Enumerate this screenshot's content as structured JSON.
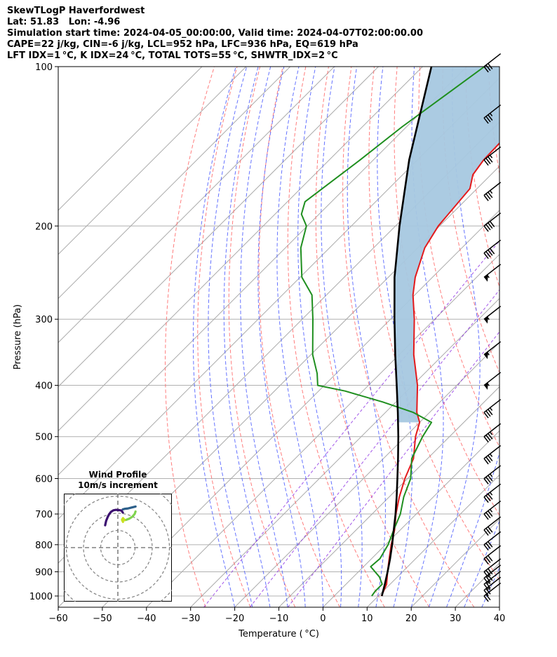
{
  "header": {
    "line1": "SkewTLogP Haverfordwest",
    "line2": "Lat: 51.83   Lon: -4.96",
    "line3": "Simulation start time: 2024-04-05_00:00:00, Valid time: 2024-04-07T02:00:00.00",
    "line4": "CAPE=22 j/kg, CIN=-6 j/kg, LCL=952 hPa, LFC=936 hPa, EQ=619 hPa",
    "line5": "LFT IDX=1 °C, K IDX=24 °C, TOTAL TOTS=55 °C, SHWTR_IDX=2 °C"
  },
  "inset": {
    "title": "Wind Profile",
    "subtitle": "10m/s increment"
  },
  "colors": {
    "temperature": "#e31a1c",
    "dewpoint": "#1f8f1f",
    "parcel": "#000000",
    "cape_fill": "#a6c8e0",
    "dry_adiabat": "#ff6666",
    "moist_adiabat": "#4a5bff",
    "mixing_ratio": "#8a2be2",
    "isotherm": "#aaaaaa"
  },
  "chart_data": [
    {
      "type": "line",
      "chart": "skew-T log-P",
      "xlabel": "Temperature ( °C)",
      "ylabel": "Pressure (hPa)",
      "xlim": [
        -60,
        40
      ],
      "ylim": [
        1050,
        100
      ],
      "y_scale": "log",
      "skew": true,
      "x_ticks": [
        -60,
        -50,
        -40,
        -30,
        -20,
        -10,
        0,
        10,
        20,
        30,
        40
      ],
      "x_tick_labels": [
        "−60",
        "−50",
        "−40",
        "−30",
        "−20",
        "−10",
        "0",
        "10",
        "20",
        "30",
        "40"
      ],
      "y_ticks": [
        1000,
        900,
        800,
        700,
        600,
        500,
        400,
        300,
        200,
        100
      ],
      "y_tick_labels": [
        "1000",
        "900",
        "800",
        "700",
        "600",
        "500",
        "400",
        "300",
        "200",
        "100"
      ],
      "grid": true,
      "series": [
        {
          "key": "temperature",
          "pressure": [
            1000,
            950,
            900,
            850,
            800,
            750,
            700,
            650,
            600,
            550,
            500,
            470,
            450,
            400,
            350,
            300,
            270,
            250,
            220,
            200,
            170,
            160,
            150,
            130,
            120,
            110,
            100
          ],
          "temp": [
            10.7,
            9.2,
            6.6,
            4.0,
            1.3,
            -1.3,
            -4.6,
            -7.7,
            -10.6,
            -13.2,
            -17.7,
            -20.0,
            -22.9,
            -28.9,
            -36.7,
            -44.6,
            -50.4,
            -53.9,
            -58.4,
            -60.3,
            -61.6,
            -64.1,
            -65.0,
            -65.4,
            -68.0,
            -66.0,
            -67.0
          ]
        },
        {
          "key": "dewpoint",
          "pressure": [
            1000,
            980,
            950,
            920,
            880,
            850,
            800,
            750,
            700,
            650,
            600,
            550,
            500,
            470,
            450,
            430,
            410,
            400,
            380,
            350,
            300,
            270,
            250,
            220,
            200,
            190,
            180,
            150,
            130,
            100
          ],
          "temp": [
            8.5,
            8.2,
            8.2,
            5.9,
            1.6,
            1.9,
            0.6,
            -1.5,
            -3.6,
            -6.7,
            -9.3,
            -13.6,
            -16.1,
            -17.3,
            -23.7,
            -33.0,
            -44.0,
            -51.5,
            -54.3,
            -59.6,
            -67.6,
            -73.3,
            -79.6,
            -86.5,
            -90.2,
            -94.0,
            -96.0,
            -93.0,
            -91.0,
            -86.0
          ]
        },
        {
          "key": "parcel",
          "pressure": [
            1000,
            950,
            900,
            850,
            800,
            750,
            700,
            650,
            600,
            550,
            500,
            450,
            400,
            350,
            300,
            250,
            200,
            150,
            100
          ],
          "temp": [
            10.8,
            8.8,
            6.6,
            4.2,
            1.5,
            -1.5,
            -4.7,
            -8.3,
            -12.3,
            -16.7,
            -21.6,
            -27.2,
            -33.6,
            -40.9,
            -49.1,
            -58.6,
            -69.1,
            -81.9,
            -98.0
          ]
        }
      ],
      "cape_region": {
        "bottom_hPa": 470,
        "top_hPa": 100
      },
      "wind_barbs": {
        "pressure": [
          1000,
          975,
          950,
          925,
          900,
          850,
          800,
          750,
          700,
          650,
          600,
          550,
          500,
          450,
          400,
          350,
          300,
          250,
          225,
          200,
          175,
          150,
          125,
          100
        ],
        "speed_kt": [
          20,
          25,
          25,
          30,
          30,
          30,
          30,
          30,
          35,
          35,
          35,
          35,
          35,
          35,
          55,
          55,
          55,
          55,
          40,
          40,
          35,
          35,
          35,
          30
        ]
      }
    },
    {
      "type": "hodograph",
      "title": "Wind Profile",
      "subtitle": "10m/s increment",
      "ring_step_ms": 10,
      "segments": [
        {
          "color": "#3b0f70",
          "u": [
            -7.4,
            -6.8,
            -5.9,
            -5.1,
            -4.0,
            -2.6,
            -1.0,
            0.8,
            2.1,
            2.9
          ],
          "v": [
            13.0,
            15.6,
            17.8,
            19.4,
            20.8,
            21.7,
            22.0,
            21.8,
            21.6,
            20.4
          ]
        },
        {
          "color": "#2c5f8a",
          "u": [
            2.9,
            4.2,
            6.0,
            8.2,
            10.3
          ],
          "v": [
            22.3,
            22.6,
            22.8,
            23.4,
            23.9
          ]
        },
        {
          "color": "#7fd34e",
          "u": [
            10.3,
            9.8,
            8.4,
            6.6,
            5.0,
            3.9
          ],
          "v": [
            21.0,
            19.6,
            18.0,
            16.8,
            16.2,
            16.0
          ]
        },
        {
          "color": "#c8e020",
          "u": [
            3.9,
            3.0,
            2.4,
            3.0
          ],
          "v": [
            16.0,
            17.2,
            16.2,
            15.0
          ]
        }
      ]
    }
  ]
}
